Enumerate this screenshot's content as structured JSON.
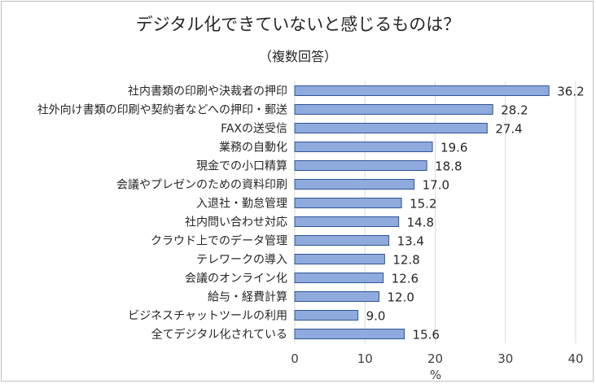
{
  "chart_data": {
    "type": "bar",
    "orientation": "horizontal",
    "title": "デジタル化できていないと感じるものは？",
    "subtitle": "（複数回答）",
    "categories": [
      "社内書類の印刷や決裁者の押印",
      "社外向け書類の印刷や契約者などへの押印・郵送",
      "FAXの送受信",
      "業務の自動化",
      "現金での小口精算",
      "会議やプレゼンのための資料印刷",
      "入退社・勤怠管理",
      "社内問い合わせ対応",
      "クラウド上でのデータ管理",
      "テレワークの導入",
      "会議のオンライン化",
      "給与・経費計算",
      "ビジネスチャットツールの利用",
      "全てデジタル化されている"
    ],
    "values": [
      36.2,
      28.2,
      27.4,
      19.6,
      18.8,
      17.0,
      15.2,
      14.8,
      13.4,
      12.8,
      12.6,
      12.0,
      9.0,
      15.6
    ],
    "value_labels": [
      "36.2",
      "28.2",
      "27.4",
      "19.6",
      "18.8",
      "17.0",
      "15.2",
      "14.8",
      "13.4",
      "12.8",
      "12.6",
      "12.0",
      "9.0",
      "15.6"
    ],
    "xlim": [
      0,
      40
    ],
    "xticks": [
      "0",
      "10",
      "20",
      "30",
      "40"
    ],
    "xlabel": "%",
    "bar_color": "#8faadc",
    "bar_edge_color": "#2f5597",
    "grid": true
  }
}
